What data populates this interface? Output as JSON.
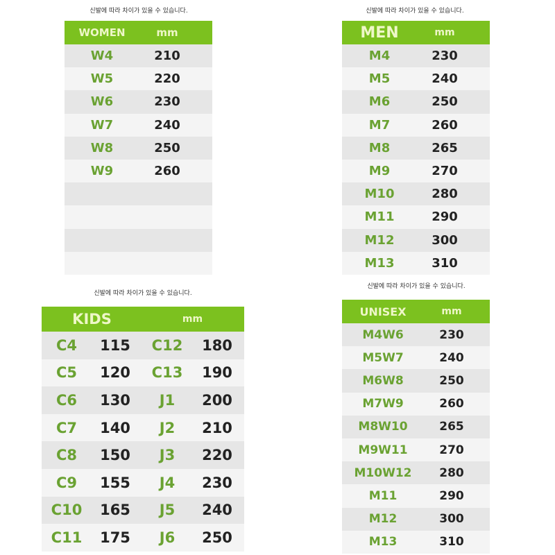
{
  "note": "신발에 따라 차이가 있을 수 있습니다.",
  "colors": {
    "header_green": "#7cc11f",
    "label_green": "#6aa232"
  },
  "women": {
    "title": "WOMEN",
    "unit": "mm",
    "rows": [
      [
        "W4",
        "210"
      ],
      [
        "W5",
        "220"
      ],
      [
        "W6",
        "230"
      ],
      [
        "W7",
        "240"
      ],
      [
        "W8",
        "250"
      ],
      [
        "W9",
        "260"
      ],
      [
        "",
        ""
      ],
      [
        "",
        ""
      ],
      [
        "",
        ""
      ],
      [
        "",
        ""
      ]
    ]
  },
  "men": {
    "title": "MEN",
    "unit": "mm",
    "rows": [
      [
        "M4",
        "230"
      ],
      [
        "M5",
        "240"
      ],
      [
        "M6",
        "250"
      ],
      [
        "M7",
        "260"
      ],
      [
        "M8",
        "265"
      ],
      [
        "M9",
        "270"
      ],
      [
        "M10",
        "280"
      ],
      [
        "M11",
        "290"
      ],
      [
        "M12",
        "300"
      ],
      [
        "M13",
        "310"
      ]
    ]
  },
  "kids": {
    "title": "KIDS",
    "unit": "mm",
    "rows": [
      [
        "C4",
        "115",
        "C12",
        "180"
      ],
      [
        "C5",
        "120",
        "C13",
        "190"
      ],
      [
        "C6",
        "130",
        "J1",
        "200"
      ],
      [
        "C7",
        "140",
        "J2",
        "210"
      ],
      [
        "C8",
        "150",
        "J3",
        "220"
      ],
      [
        "C9",
        "155",
        "J4",
        "230"
      ],
      [
        "C10",
        "165",
        "J5",
        "240"
      ],
      [
        "C11",
        "175",
        "J6",
        "250"
      ]
    ]
  },
  "unisex": {
    "title": "UNISEX",
    "unit": "mm",
    "rows": [
      [
        "M4W6",
        "230"
      ],
      [
        "M5W7",
        "240"
      ],
      [
        "M6W8",
        "250"
      ],
      [
        "M7W9",
        "260"
      ],
      [
        "M8W10",
        "265"
      ],
      [
        "M9W11",
        "270"
      ],
      [
        "M10W12",
        "280"
      ],
      [
        "M11",
        "290"
      ],
      [
        "M12",
        "300"
      ],
      [
        "M13",
        "310"
      ]
    ]
  }
}
